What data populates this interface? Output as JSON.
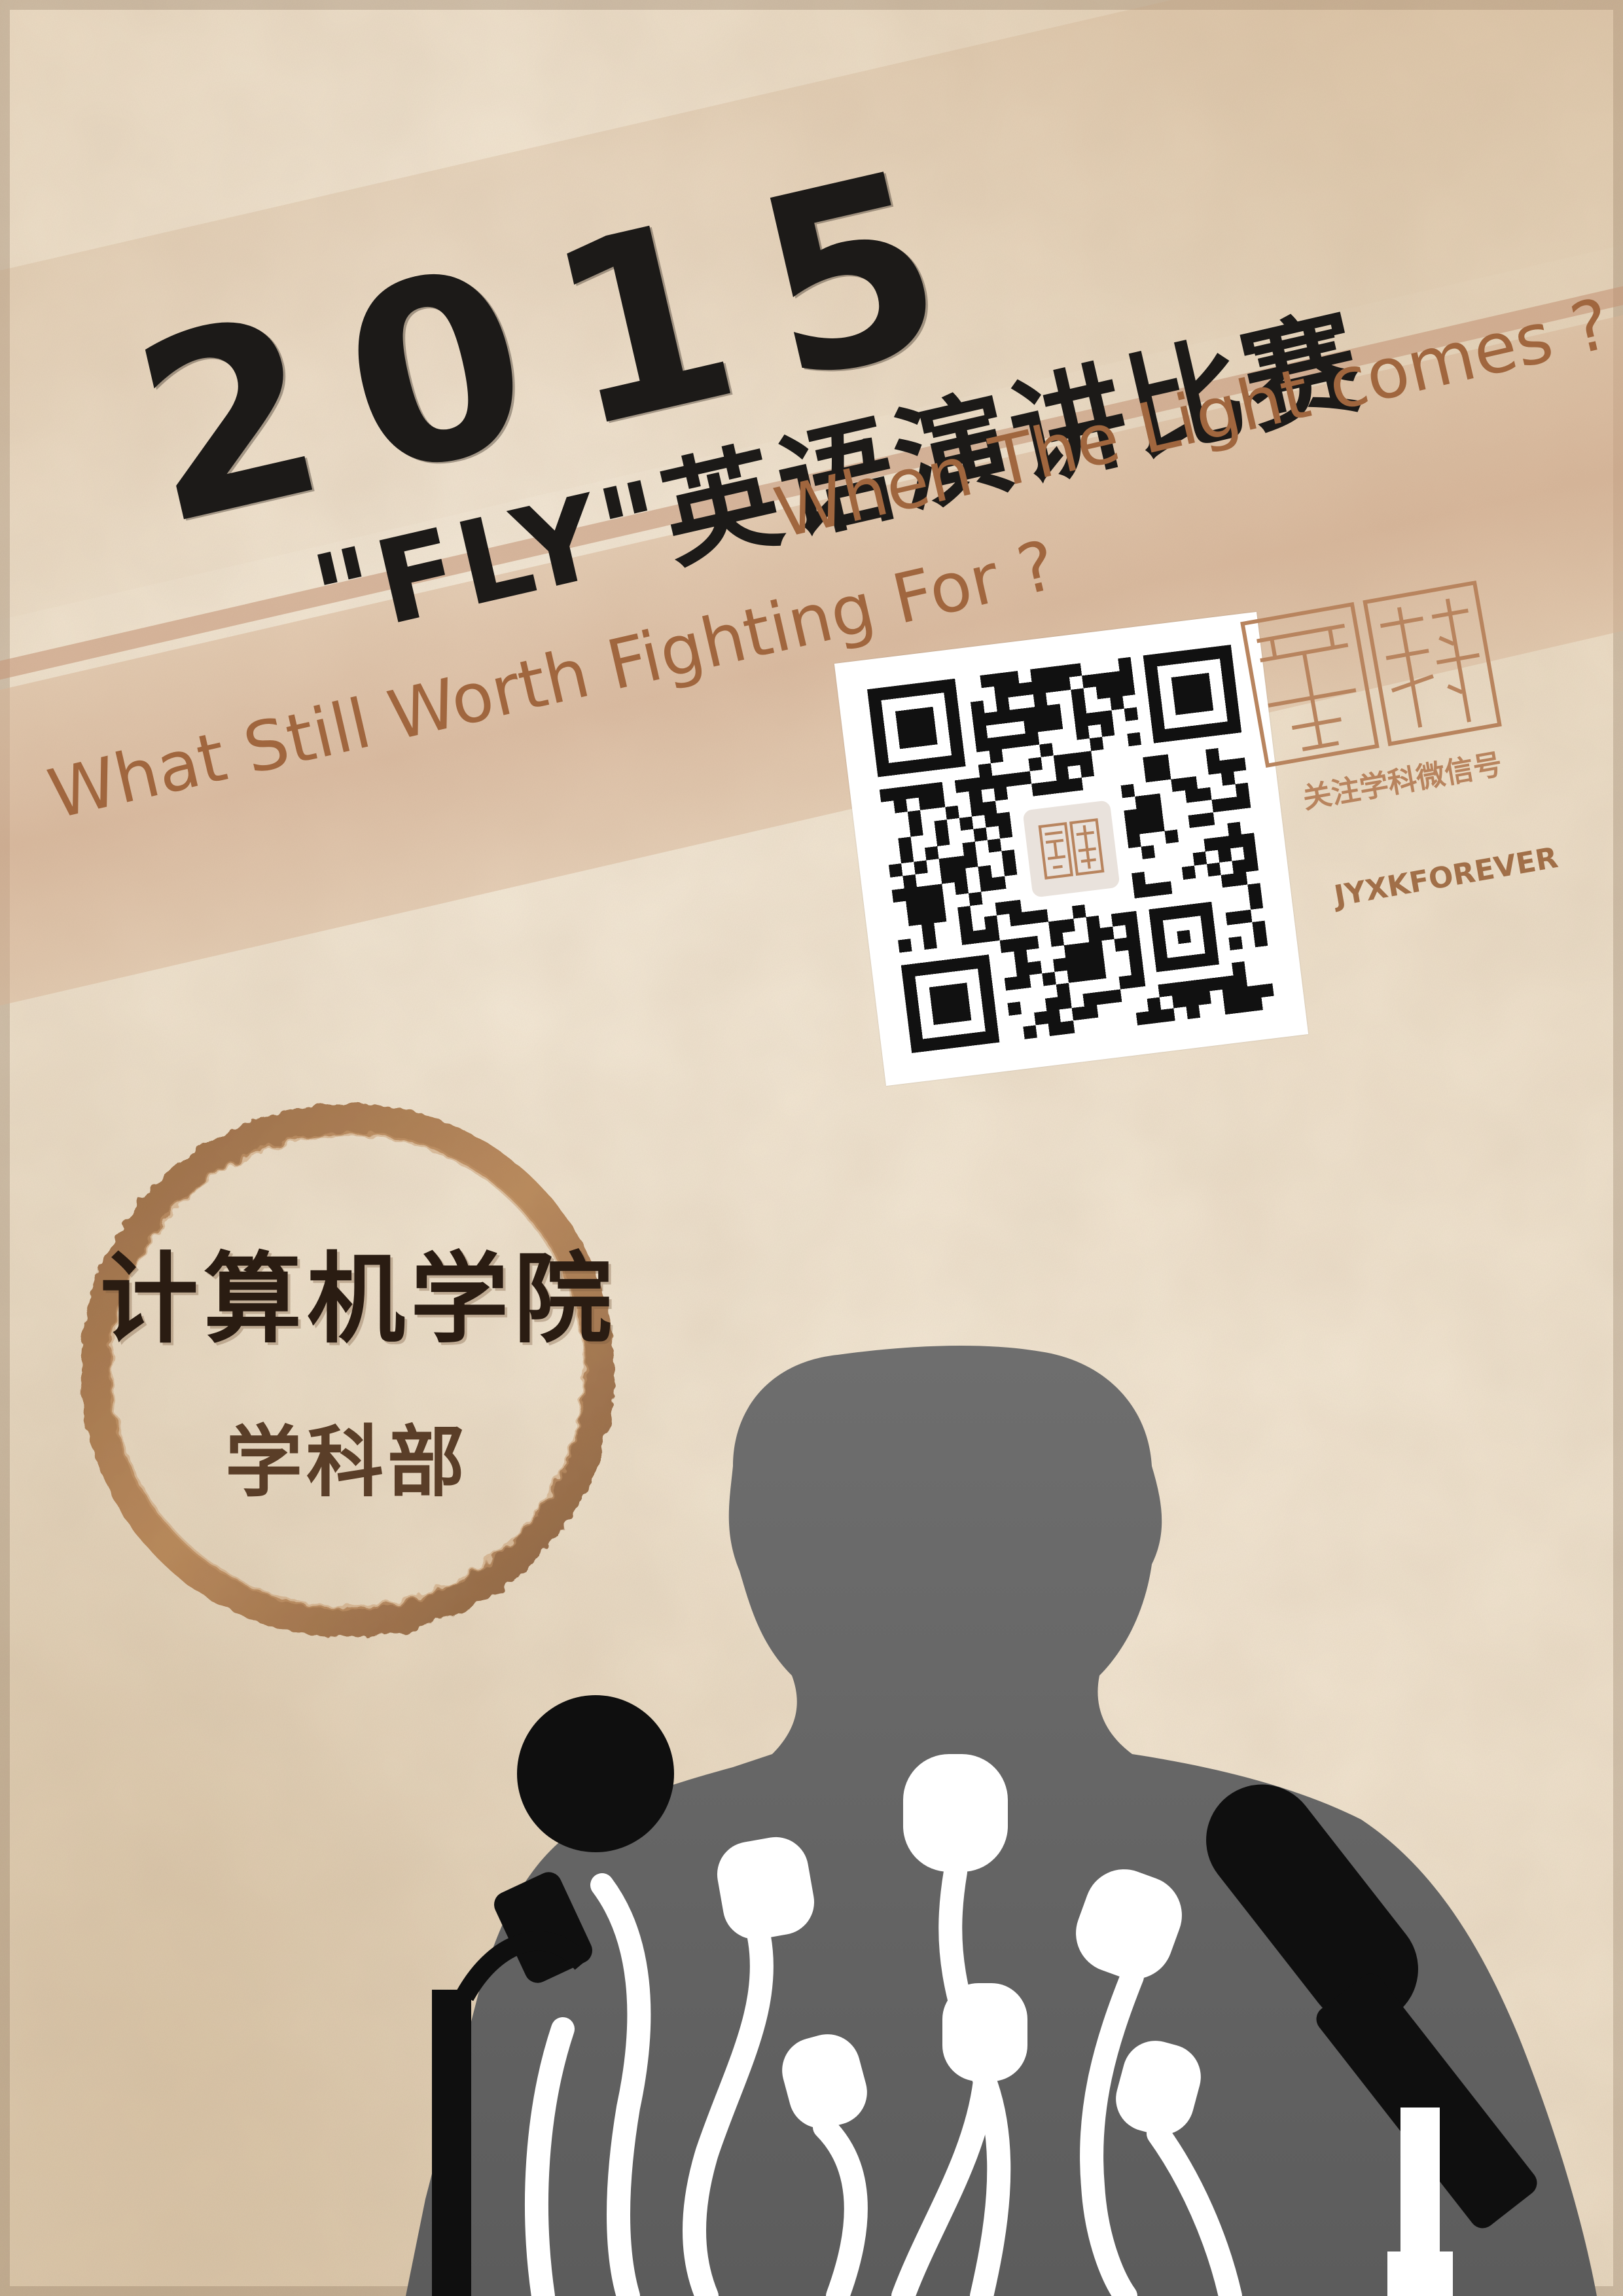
{
  "poster": {
    "year": "2015",
    "title": "\"FLY\"英语演讲比赛",
    "tagline_1": "When The Light comes ?",
    "tagline_2": "What Still Worth Fighting For ?",
    "follow_text": "关注学科微信号",
    "account_id": "JYXKFOREVER",
    "college": "计算机学院",
    "department": "学科部",
    "logo_text": "學科",
    "colors": {
      "title": "#1c1a18",
      "tagline": "#a0663e",
      "accent_brown": "#a16f48",
      "ring": "#9a6a40",
      "speaker_silhouette": "#6d6d6d"
    },
    "icons": [
      "qr-code-icon",
      "xueke-seal-logo",
      "speaker-silhouette-icon",
      "microphone-icon"
    ]
  }
}
